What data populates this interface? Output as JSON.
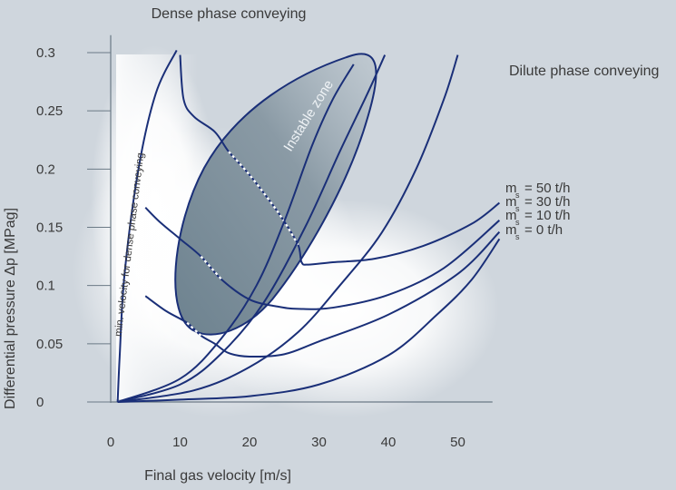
{
  "chart_data": {
    "type": "line",
    "title_top": "Dense phase conveying",
    "title_right": "Dilute phase conveying",
    "xlabel": "Final gas velocity [m/s]",
    "ylabel": "Differential pressure Δp [MPag]",
    "xlim": [
      0,
      55
    ],
    "ylim": [
      0,
      0.3
    ],
    "x_ticks": [
      "0",
      "10",
      "20",
      "30",
      "40",
      "50"
    ],
    "x_tick_values": [
      0,
      10,
      20,
      30,
      40,
      50
    ],
    "y_ticks": [
      "0",
      "0.05",
      "0.1",
      "0.15",
      "0.2",
      "0.25",
      "0.3"
    ],
    "y_tick_values": [
      0,
      0.05,
      0.1,
      0.15,
      0.2,
      0.25,
      0.3
    ],
    "grid": false,
    "colors": {
      "curve": "#1a2f78",
      "zone_fill": "#7f939f",
      "background": "#cfd6dd",
      "text": "#3a3a3a"
    },
    "annotations": {
      "instable_zone": "Instable zone",
      "min_velocity": "min. velocity for dense phase conveying"
    },
    "legend": [
      {
        "m": "m",
        "sub": "s",
        "text": "= 50 t/h"
      },
      {
        "m": "m",
        "sub": "s",
        "text": "= 30 t/h"
      },
      {
        "m": "m",
        "sub": "s",
        "text": "= 10 t/h"
      },
      {
        "m": "m",
        "sub": "s",
        "text": "=   0 t/h"
      }
    ],
    "series": [
      {
        "key": "ms50",
        "points": [
          [
            10,
            0.298
          ],
          [
            10.5,
            0.26
          ],
          [
            12,
            0.245
          ],
          [
            15,
            0.232
          ],
          [
            17,
            0.215
          ],
          [
            20,
            0.195
          ],
          [
            23,
            0.172
          ],
          [
            25,
            0.155
          ],
          [
            27,
            0.135
          ],
          [
            27.5,
            0.12
          ],
          [
            28.5,
            0.118
          ],
          [
            32,
            0.12
          ],
          [
            38,
            0.123
          ],
          [
            45,
            0.134
          ],
          [
            52,
            0.153
          ],
          [
            56,
            0.171
          ]
        ],
        "dashed_between": [
          17,
          27
        ]
      },
      {
        "key": "ms30",
        "points": [
          [
            5,
            0.167
          ],
          [
            7,
            0.155
          ],
          [
            10,
            0.14
          ],
          [
            13,
            0.125
          ],
          [
            16,
            0.105
          ],
          [
            20,
            0.088
          ],
          [
            24,
            0.082
          ],
          [
            27,
            0.08
          ],
          [
            32,
            0.081
          ],
          [
            40,
            0.092
          ],
          [
            48,
            0.115
          ],
          [
            56,
            0.156
          ]
        ],
        "dashed_between": [
          12,
          19
        ]
      },
      {
        "key": "ms10",
        "points": [
          [
            5,
            0.091
          ],
          [
            8,
            0.078
          ],
          [
            11,
            0.068
          ],
          [
            13,
            0.057
          ],
          [
            15,
            0.05
          ],
          [
            17,
            0.042
          ],
          [
            20,
            0.039
          ],
          [
            25,
            0.041
          ],
          [
            30,
            0.052
          ],
          [
            40,
            0.075
          ],
          [
            50,
            0.11
          ],
          [
            56,
            0.146
          ]
        ],
        "dashed_between": [
          11,
          14
        ]
      },
      {
        "key": "ms0",
        "points": [
          [
            1,
            0
          ],
          [
            10,
            0.002
          ],
          [
            20,
            0.005
          ],
          [
            30,
            0.015
          ],
          [
            40,
            0.04
          ],
          [
            47,
            0.075
          ],
          [
            52,
            0.105
          ],
          [
            56,
            0.14
          ]
        ]
      },
      {
        "key": "minvel",
        "points": [
          [
            1,
            0
          ],
          [
            1.3,
            0.04
          ],
          [
            2,
            0.11
          ],
          [
            4,
            0.2
          ],
          [
            6.5,
            0.265
          ],
          [
            9.5,
            0.302
          ]
        ]
      },
      {
        "key": "band1",
        "points": [
          [
            1,
            0
          ],
          [
            10,
            0.02
          ],
          [
            16,
            0.055
          ],
          [
            21,
            0.1
          ],
          [
            25,
            0.155
          ],
          [
            29,
            0.22
          ],
          [
            32,
            0.26
          ],
          [
            35,
            0.29
          ]
        ]
      },
      {
        "key": "band2",
        "points": [
          [
            1,
            0
          ],
          [
            10,
            0.015
          ],
          [
            16,
            0.042
          ],
          [
            22,
            0.085
          ],
          [
            28,
            0.15
          ],
          [
            33,
            0.215
          ],
          [
            37,
            0.265
          ],
          [
            39.5,
            0.298
          ]
        ]
      },
      {
        "key": "band3",
        "points": [
          [
            1,
            0
          ],
          [
            12,
            0.01
          ],
          [
            20,
            0.03
          ],
          [
            27,
            0.06
          ],
          [
            33,
            0.1
          ],
          [
            39,
            0.145
          ],
          [
            44,
            0.2
          ],
          [
            48,
            0.26
          ],
          [
            50,
            0.298
          ]
        ]
      }
    ]
  }
}
